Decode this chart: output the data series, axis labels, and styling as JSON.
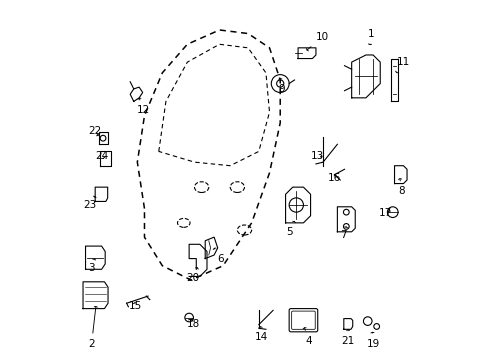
{
  "background_color": "#ffffff",
  "figsize": [
    4.89,
    3.6
  ],
  "dpi": 100,
  "line_color": "#000000",
  "label_fontsize": 7.5
}
